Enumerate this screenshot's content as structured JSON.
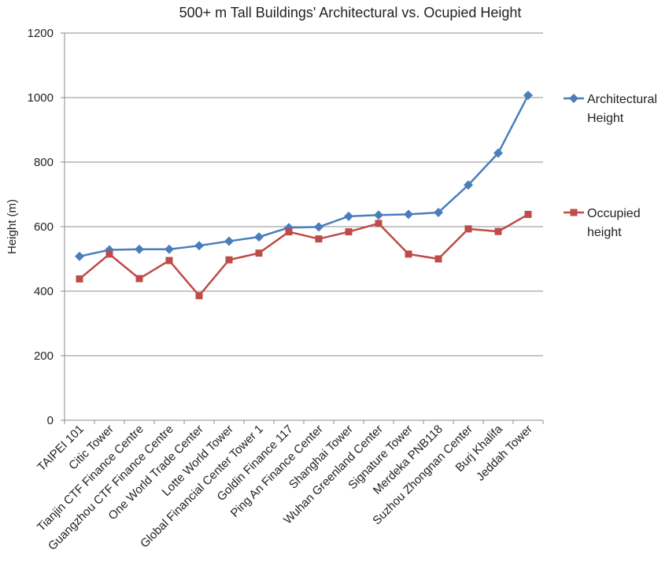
{
  "chart_data": {
    "type": "line",
    "title": "500+ m Tall Buildings' Architectural vs. Ocupied Height",
    "xlabel": "",
    "ylabel": "Height (m)",
    "ylim": [
      0,
      1200
    ],
    "yticks": [
      0,
      200,
      400,
      600,
      800,
      1000,
      1200
    ],
    "grid": "horizontal",
    "legend_position": "right",
    "categories": [
      "TAIPEI 101",
      "Citic Tower",
      "Tianjin CTF Finance Centre",
      "Guangzhou CTF Finance Centre",
      "One World Trade Center",
      "Lotte World Tower",
      "Global Financial Center Tower 1",
      "Goldin Finance 117",
      "Ping An Finance Center",
      "Shanghai Tower",
      "Wuhan Greenland Center",
      "Signature Tower",
      "Merdeka PNB118",
      "Suzhou Zhongnan Center",
      "Burj Khalifa",
      "Jeddah Tower"
    ],
    "series": [
      {
        "name": "Architectural Height",
        "legend_lines": [
          "Architectural",
          "Height"
        ],
        "color": "#4a7ebb",
        "marker": "diamond",
        "values": [
          508,
          528,
          530,
          530,
          541,
          555,
          568,
          597,
          599,
          632,
          636,
          638,
          644,
          729,
          828,
          1007
        ]
      },
      {
        "name": "Occupied height",
        "legend_lines": [
          "Occupied",
          "height"
        ],
        "color": "#be4b48",
        "marker": "square",
        "values": [
          438,
          515,
          439,
          495,
          386,
          497,
          518,
          584,
          562,
          584,
          610,
          515,
          500,
          593,
          585,
          638
        ]
      }
    ]
  }
}
